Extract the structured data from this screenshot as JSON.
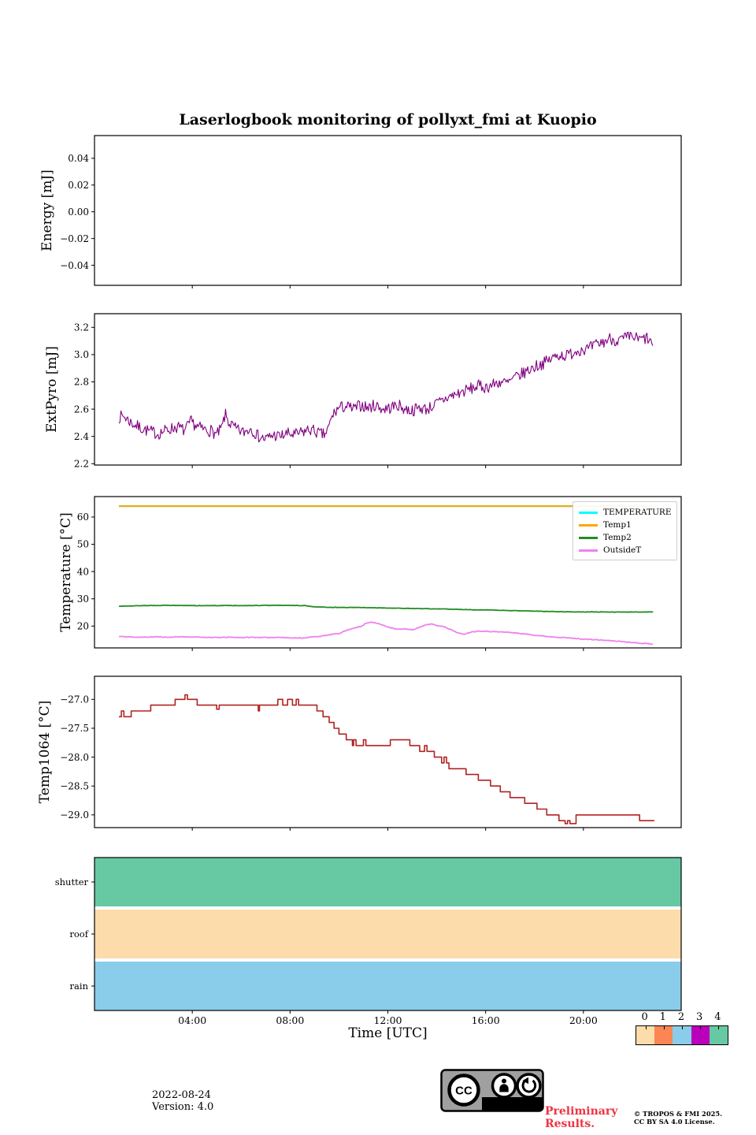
{
  "title": "Laserlogbook monitoring of pollyxt_fmi at Kuopio",
  "xlabel": "Time [UTC]",
  "xlim": [
    0,
    24
  ],
  "xticks": [
    {
      "t": 4,
      "label": "04:00"
    },
    {
      "t": 8,
      "label": "08:00"
    },
    {
      "t": 12,
      "label": "12:00"
    },
    {
      "t": 16,
      "label": "16:00"
    },
    {
      "t": 20,
      "label": "20:00"
    }
  ],
  "chart_data": [
    {
      "id": "energy",
      "type": "line",
      "ylabel": "Energy [mJ]",
      "ylim": [
        -0.055,
        0.057
      ],
      "yticks": [
        {
          "v": 0.04,
          "label": "0.04"
        },
        {
          "v": 0.02,
          "label": "0.02"
        },
        {
          "v": 0.0,
          "label": "0.00"
        },
        {
          "v": -0.02,
          "label": "−0.02"
        },
        {
          "v": -0.04,
          "label": "−0.04"
        }
      ],
      "series": []
    },
    {
      "id": "extpyro",
      "type": "line",
      "ylabel": "ExtPyro [mJ]",
      "ylim": [
        2.19,
        3.3
      ],
      "yticks": [
        {
          "v": 3.2,
          "label": "3.2"
        },
        {
          "v": 3.0,
          "label": "3.0"
        },
        {
          "v": 2.8,
          "label": "2.8"
        },
        {
          "v": 2.6,
          "label": "2.6"
        },
        {
          "v": 2.4,
          "label": "2.4"
        },
        {
          "v": 2.2,
          "label": "2.2"
        }
      ],
      "series": [
        {
          "name": "ExtPyro",
          "color": "#800080",
          "width": 1.1,
          "noise": 0.045,
          "sample_step": 0.04,
          "seed": 7,
          "x": [
            1.0,
            1.2,
            1.5,
            1.8,
            2.2,
            2.6,
            3.0,
            3.4,
            3.7,
            3.95,
            4.2,
            4.5,
            4.8,
            5.0,
            5.2,
            5.35,
            5.5,
            5.8,
            6.1,
            6.4,
            6.7,
            7.0,
            7.3,
            7.6,
            7.9,
            8.2,
            8.5,
            8.8,
            9.0,
            9.2,
            9.4,
            9.55,
            9.75,
            10.0,
            10.3,
            10.6,
            10.9,
            11.2,
            11.5,
            11.8,
            12.1,
            12.4,
            12.7,
            13.0,
            13.3,
            13.6,
            13.9,
            14.2,
            14.5,
            14.8,
            15.1,
            15.4,
            15.7,
            16.0,
            16.3,
            16.6,
            16.9,
            17.2,
            17.5,
            17.8,
            18.1,
            18.4,
            18.7,
            19.0,
            19.3,
            19.6,
            19.9,
            20.2,
            20.5,
            20.8,
            21.1,
            21.4,
            21.7,
            22.0,
            22.3,
            22.6,
            22.85
          ],
          "y": [
            2.54,
            2.55,
            2.5,
            2.47,
            2.44,
            2.42,
            2.45,
            2.47,
            2.44,
            2.51,
            2.47,
            2.45,
            2.44,
            2.41,
            2.46,
            2.56,
            2.5,
            2.45,
            2.43,
            2.46,
            2.4,
            2.38,
            2.41,
            2.4,
            2.42,
            2.41,
            2.43,
            2.45,
            2.44,
            2.42,
            2.41,
            2.45,
            2.56,
            2.61,
            2.62,
            2.6,
            2.63,
            2.61,
            2.63,
            2.6,
            2.61,
            2.63,
            2.6,
            2.59,
            2.61,
            2.6,
            2.63,
            2.66,
            2.69,
            2.71,
            2.73,
            2.75,
            2.77,
            2.76,
            2.78,
            2.8,
            2.79,
            2.83,
            2.86,
            2.89,
            2.92,
            2.94,
            2.97,
            3.0,
            2.99,
            3.02,
            3.04,
            3.04,
            3.07,
            3.09,
            3.12,
            3.1,
            3.12,
            3.13,
            3.11,
            3.12,
            3.07
          ]
        }
      ]
    },
    {
      "id": "temperature",
      "type": "line",
      "ylabel": "Temperature [°C]",
      "ylim": [
        12,
        67.5
      ],
      "legend": true,
      "yticks": [
        {
          "v": 60,
          "label": "60"
        },
        {
          "v": 50,
          "label": "50"
        },
        {
          "v": 40,
          "label": "40"
        },
        {
          "v": 30,
          "label": "30"
        },
        {
          "v": 20,
          "label": "20"
        }
      ],
      "series": [
        {
          "name": "TEMPERATURE",
          "color": "#00ffff",
          "width": 2.2,
          "x": [
            1,
            22.85
          ],
          "y": [
            64,
            64
          ]
        },
        {
          "name": "Temp1",
          "color": "#ffa500",
          "width": 2.0,
          "x": [
            1,
            22.85
          ],
          "y": [
            64,
            64
          ]
        },
        {
          "name": "Temp2",
          "color": "#228b22",
          "width": 1.8,
          "noise": 0.07,
          "sample_step": 0.05,
          "seed": 3,
          "x": [
            1,
            2,
            3,
            4,
            5,
            6,
            7,
            8,
            8.6,
            9.0,
            9.5,
            10,
            11,
            12,
            13,
            14,
            15,
            16,
            17,
            18,
            19,
            20,
            21,
            22,
            22.85
          ],
          "y": [
            27.3,
            27.5,
            27.6,
            27.5,
            27.5,
            27.5,
            27.6,
            27.6,
            27.5,
            27.1,
            26.9,
            26.85,
            26.8,
            26.6,
            26.45,
            26.3,
            26.1,
            25.9,
            25.7,
            25.5,
            25.3,
            25.2,
            25.15,
            25.15,
            25.2
          ]
        },
        {
          "name": "OutsideT",
          "color": "#ee82ee",
          "width": 1.8,
          "noise": 0.13,
          "sample_step": 0.04,
          "seed": 11,
          "x": [
            1,
            1.5,
            2,
            2.5,
            3,
            3.5,
            4,
            4.5,
            5,
            5.5,
            6,
            6.5,
            7,
            7.5,
            8,
            8.5,
            9,
            9.3,
            9.6,
            10,
            10.3,
            10.6,
            10.9,
            11.1,
            11.3,
            11.5,
            11.8,
            12.1,
            12.4,
            12.7,
            13,
            13.3,
            13.6,
            13.8,
            14,
            14.3,
            14.6,
            14.9,
            15.1,
            15.4,
            15.7,
            16,
            16.5,
            17,
            17.5,
            18,
            18.5,
            19,
            19.5,
            20,
            20.5,
            21,
            21.5,
            22,
            22.4,
            22.85
          ],
          "y": [
            16.2,
            16.0,
            15.9,
            16.1,
            15.9,
            16.1,
            16.0,
            15.9,
            15.8,
            15.9,
            15.8,
            15.9,
            15.8,
            15.9,
            15.7,
            15.6,
            16.1,
            16.3,
            16.8,
            17.3,
            18.4,
            19.3,
            19.8,
            21.0,
            21.5,
            21.2,
            20.3,
            19.4,
            18.8,
            19.0,
            18.6,
            19.6,
            20.5,
            20.8,
            20.2,
            19.8,
            18.6,
            17.4,
            17.0,
            17.8,
            18.2,
            18.1,
            17.9,
            17.7,
            17.2,
            16.7,
            16.2,
            15.9,
            15.6,
            15.2,
            15.0,
            14.7,
            14.4,
            14.0,
            13.7,
            13.4
          ]
        }
      ]
    },
    {
      "id": "temp1064",
      "type": "line",
      "ylabel": "Temp1064 [°C]",
      "ylim": [
        -29.22,
        -26.6
      ],
      "yticks": [
        {
          "v": -27.0,
          "label": "−27.0"
        },
        {
          "v": -27.5,
          "label": "−27.5"
        },
        {
          "v": -28.0,
          "label": "−28.0"
        },
        {
          "v": -28.5,
          "label": "−28.5"
        },
        {
          "v": -29.0,
          "label": "−29.0"
        }
      ],
      "series": [
        {
          "name": "Temp1064",
          "color": "#b22222",
          "width": 1.6,
          "step": true,
          "x": [
            1.0,
            1.1,
            1.2,
            1.5,
            2.3,
            3.3,
            3.7,
            3.8,
            4.2,
            5.0,
            5.1,
            6.6,
            6.7,
            6.75,
            7.5,
            7.7,
            7.9,
            8.1,
            8.25,
            8.35,
            9.1,
            9.35,
            9.6,
            9.8,
            10.0,
            10.3,
            10.55,
            10.6,
            10.7,
            11.0,
            11.1,
            12.1,
            12.9,
            13.3,
            13.5,
            13.6,
            13.9,
            14.2,
            14.3,
            14.4,
            14.5,
            15.2,
            15.7,
            16.2,
            16.6,
            17.0,
            17.6,
            18.1,
            18.5,
            19.0,
            19.25,
            19.35,
            19.45,
            19.7,
            22.3,
            22.45,
            22.9
          ],
          "y": [
            -27.3,
            -27.2,
            -27.3,
            -27.2,
            -27.1,
            -27.0,
            -26.92,
            -27.0,
            -27.1,
            -27.17,
            -27.1,
            -27.1,
            -27.2,
            -27.1,
            -27.0,
            -27.1,
            -27.0,
            -27.1,
            -27.0,
            -27.1,
            -27.2,
            -27.3,
            -27.4,
            -27.5,
            -27.6,
            -27.7,
            -27.8,
            -27.7,
            -27.8,
            -27.7,
            -27.8,
            -27.7,
            -27.8,
            -27.9,
            -27.8,
            -27.9,
            -28.0,
            -28.1,
            -28.0,
            -28.1,
            -28.2,
            -28.3,
            -28.4,
            -28.5,
            -28.6,
            -28.7,
            -28.8,
            -28.9,
            -29.0,
            -29.1,
            -29.15,
            -29.1,
            -29.15,
            -29.0,
            -29.1,
            -29.1,
            -29.1
          ]
        }
      ]
    },
    {
      "id": "status",
      "type": "bars",
      "ylabel": "",
      "categories": [
        "shutter",
        "roof",
        "rain"
      ],
      "bars": [
        {
          "label": "shutter",
          "color": "#66c9a3",
          "start": 0,
          "end": 24
        },
        {
          "label": "roof",
          "color": "#fcdcab",
          "start": 0,
          "end": 24
        },
        {
          "label": "rain",
          "color": "#89cdea",
          "start": 0,
          "end": 24
        }
      ]
    }
  ],
  "colorbar": {
    "labels": [
      "0",
      "1",
      "2",
      "3",
      "4"
    ],
    "colors": [
      "#fcdcab",
      "#fa8653",
      "#89cdea",
      "#bb00bb",
      "#66c9a3"
    ]
  },
  "footer": {
    "date": "2022-08-24",
    "version": "Version: 4.0",
    "preliminary_lines": [
      "Preliminary",
      "Results."
    ],
    "preliminary_color": "#ee3342",
    "copyright_lines": [
      "© TROPOS & FMI 2025.",
      "CC BY SA 4.0 License."
    ],
    "cc_badge": {
      "cc": "CC",
      "by": "BY",
      "sa": "SA"
    }
  }
}
